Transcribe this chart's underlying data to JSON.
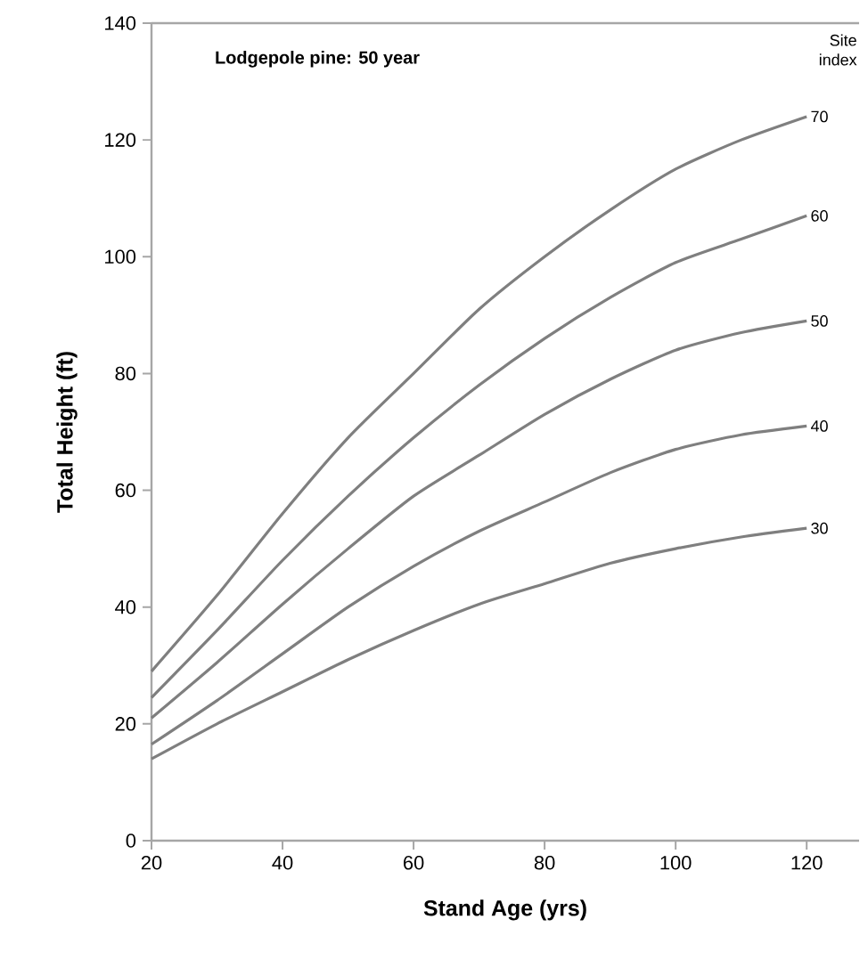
{
  "chart_data": {
    "type": "line",
    "title": "Lodgepole pine: 50 year",
    "xlabel": "Stand Age (yrs)",
    "ylabel": "Total Height (ft)",
    "legend_title": "Site index",
    "x": [
      20,
      30,
      40,
      50,
      60,
      70,
      80,
      90,
      100,
      110,
      120
    ],
    "series": [
      {
        "name": "70",
        "color": "#7f7f7f",
        "values": [
          29,
          42,
          56,
          69,
          80,
          91,
          100,
          108,
          115,
          120,
          124
        ]
      },
      {
        "name": "60",
        "color": "#7f7f7f",
        "values": [
          24.5,
          36,
          48,
          59,
          69,
          78,
          86,
          93,
          99,
          103,
          107
        ]
      },
      {
        "name": "50",
        "color": "#7f7f7f",
        "values": [
          21,
          30.5,
          40.5,
          50,
          59,
          66,
          73,
          79,
          84,
          87,
          89
        ]
      },
      {
        "name": "40",
        "color": "#7f7f7f",
        "values": [
          16.5,
          24,
          32,
          40,
          47,
          53,
          58,
          63,
          67,
          69.5,
          71
        ]
      },
      {
        "name": "30",
        "color": "#7f7f7f",
        "values": [
          14,
          20,
          25.5,
          31,
          36,
          40.5,
          44,
          47.5,
          50,
          52,
          53.5
        ]
      }
    ],
    "xlim": [
      20,
      128
    ],
    "ylim": [
      0,
      140
    ],
    "xticks": [
      20,
      40,
      60,
      80,
      100,
      120
    ],
    "yticks": [
      0,
      20,
      40,
      60,
      80,
      100,
      120,
      140
    ],
    "grid": false,
    "line_style": "solid"
  }
}
